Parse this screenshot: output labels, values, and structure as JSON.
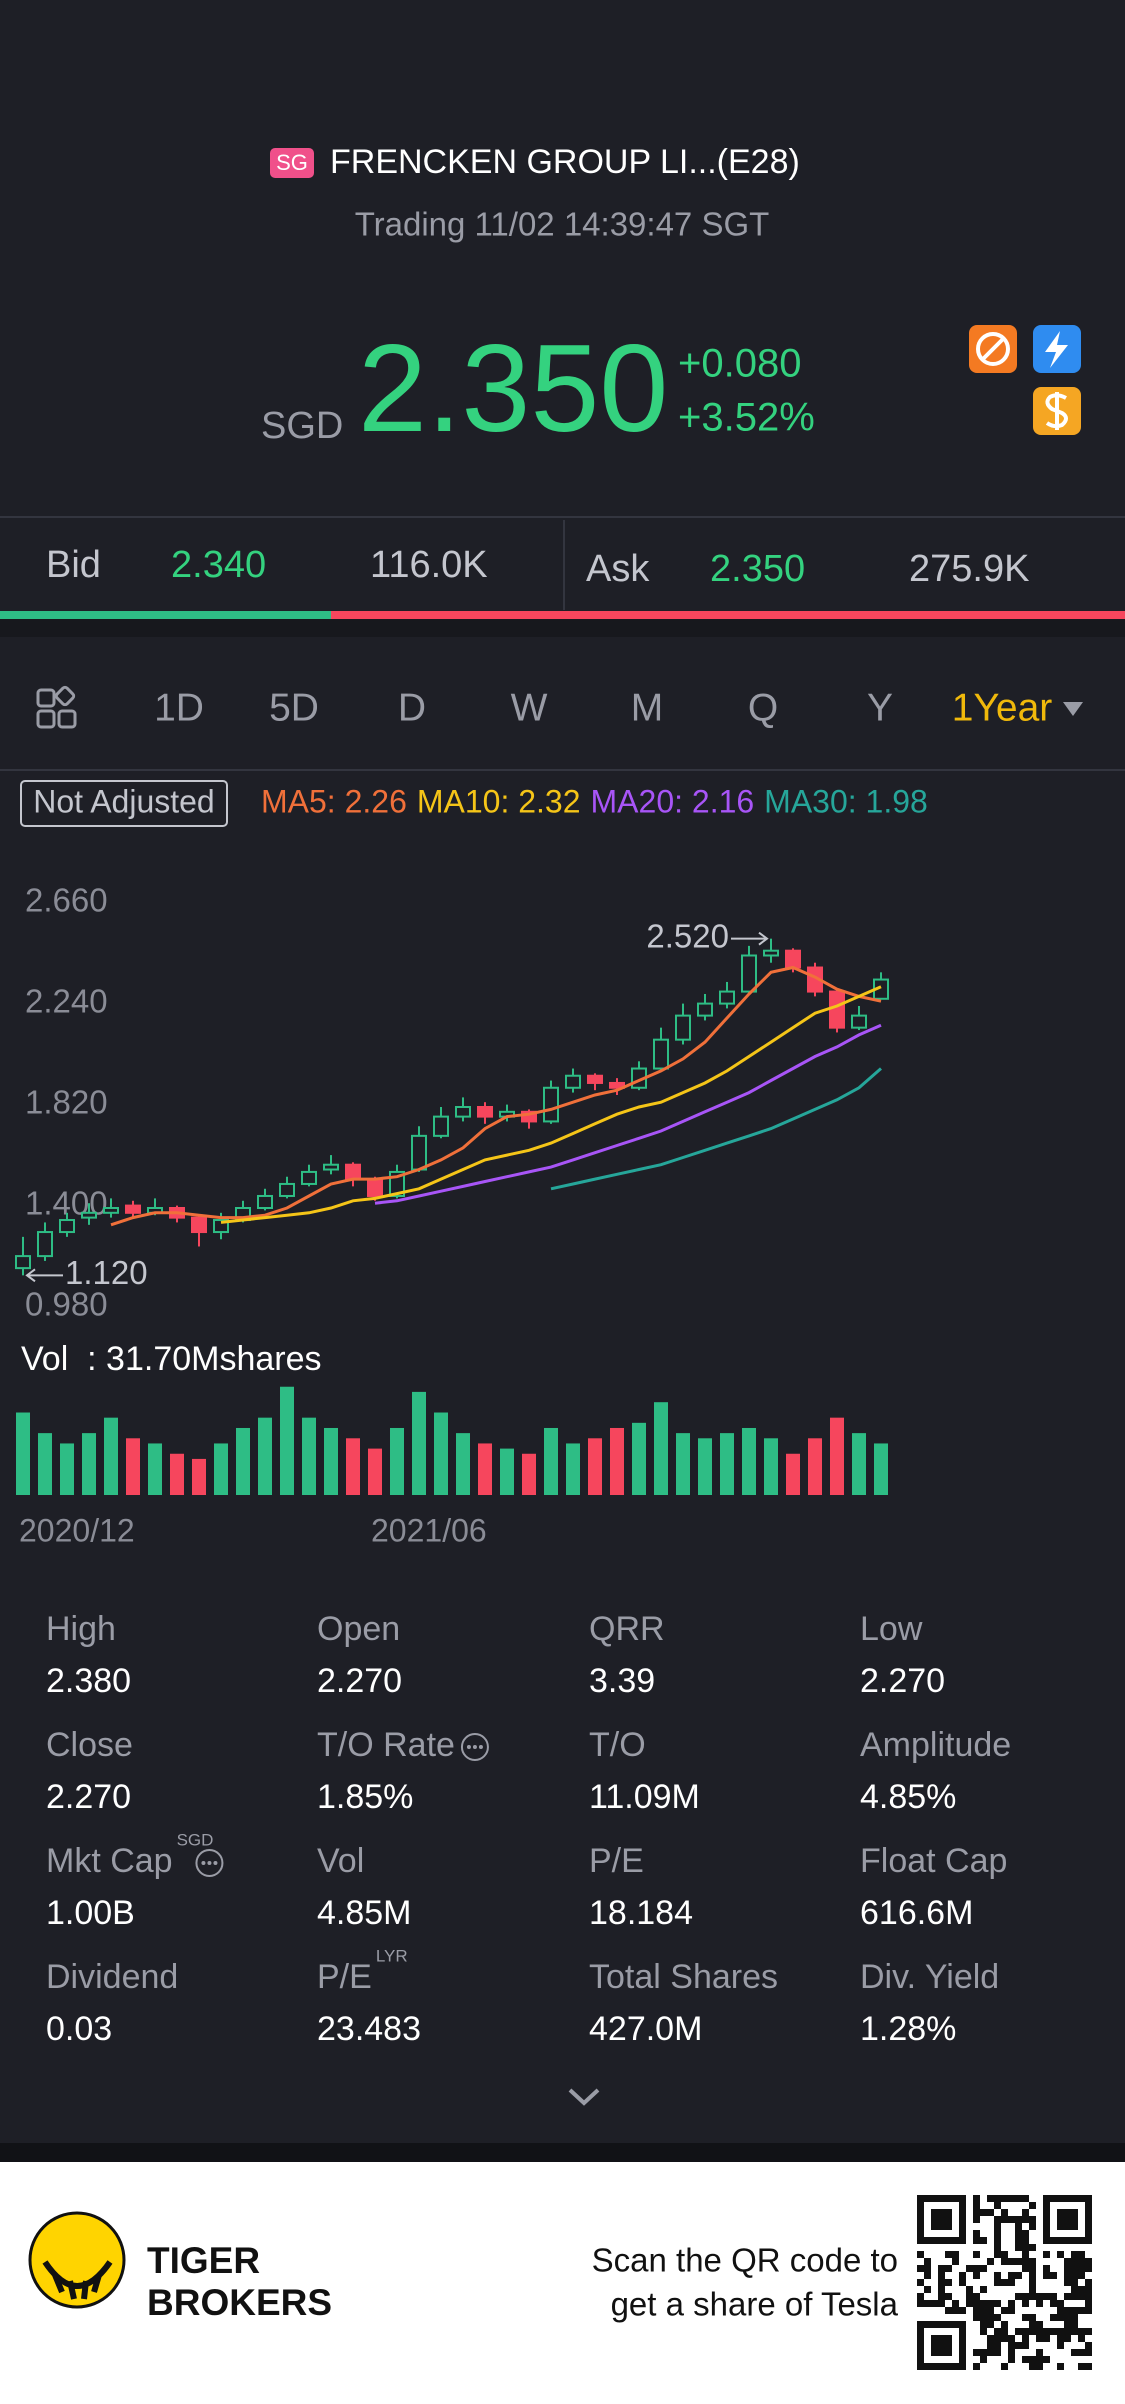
{
  "header": {
    "badge": "SG",
    "title": "FRENCKEN GROUP LI...(E28)",
    "status": "Trading 11/02 14:39:47 SGT"
  },
  "quote": {
    "currency": "SGD",
    "price": "2.350",
    "change": "+0.080",
    "change_pct": "+3.52%"
  },
  "bid_ask": {
    "bid_label": "Bid",
    "bid_price": "2.340",
    "bid_size": "116.0K",
    "ask_label": "Ask",
    "ask_price": "2.350",
    "ask_size": "275.9K"
  },
  "tabs": [
    "1D",
    "5D",
    "D",
    "W",
    "M",
    "Q",
    "Y",
    "1Year"
  ],
  "chart": {
    "type": "candlestick",
    "adjust": "Not Adjusted",
    "ylim": [
      0.98,
      2.66
    ],
    "yticks": [
      {
        "value": 2.66,
        "label": "2.660"
      },
      {
        "value": 2.24,
        "label": "2.240"
      },
      {
        "value": 1.82,
        "label": "1.820"
      },
      {
        "value": 1.4,
        "label": "1.400"
      },
      {
        "value": 0.98,
        "label": "0.980"
      }
    ],
    "high_mark": {
      "value": 2.52,
      "label": "2.520"
    },
    "low_mark": {
      "value": 1.12,
      "label": "1.120"
    },
    "up_color": "#2ebd85",
    "down_color": "#f6465d",
    "ohlc": [
      [
        1.15,
        1.28,
        1.12,
        1.2
      ],
      [
        1.2,
        1.34,
        1.18,
        1.3
      ],
      [
        1.3,
        1.38,
        1.28,
        1.35
      ],
      [
        1.36,
        1.42,
        1.33,
        1.38
      ],
      [
        1.38,
        1.44,
        1.36,
        1.4
      ],
      [
        1.41,
        1.43,
        1.36,
        1.38
      ],
      [
        1.38,
        1.44,
        1.37,
        1.4
      ],
      [
        1.4,
        1.41,
        1.34,
        1.36
      ],
      [
        1.36,
        1.37,
        1.24,
        1.3
      ],
      [
        1.3,
        1.38,
        1.27,
        1.35
      ],
      [
        1.35,
        1.43,
        1.34,
        1.4
      ],
      [
        1.4,
        1.48,
        1.39,
        1.45
      ],
      [
        1.45,
        1.53,
        1.44,
        1.5
      ],
      [
        1.5,
        1.58,
        1.49,
        1.55
      ],
      [
        1.56,
        1.62,
        1.54,
        1.58
      ],
      [
        1.58,
        1.59,
        1.49,
        1.52
      ],
      [
        1.52,
        1.53,
        1.43,
        1.45
      ],
      [
        1.45,
        1.58,
        1.44,
        1.55
      ],
      [
        1.56,
        1.74,
        1.55,
        1.7
      ],
      [
        1.7,
        1.82,
        1.69,
        1.78
      ],
      [
        1.78,
        1.86,
        1.76,
        1.82
      ],
      [
        1.82,
        1.84,
        1.75,
        1.78
      ],
      [
        1.78,
        1.83,
        1.76,
        1.8
      ],
      [
        1.8,
        1.81,
        1.73,
        1.76
      ],
      [
        1.76,
        1.93,
        1.75,
        1.9
      ],
      [
        1.9,
        1.98,
        1.88,
        1.95
      ],
      [
        1.95,
        1.96,
        1.89,
        1.92
      ],
      [
        1.92,
        1.94,
        1.87,
        1.9
      ],
      [
        1.9,
        2.01,
        1.89,
        1.98
      ],
      [
        1.98,
        2.15,
        1.97,
        2.1
      ],
      [
        2.1,
        2.25,
        2.08,
        2.2
      ],
      [
        2.2,
        2.29,
        2.18,
        2.25
      ],
      [
        2.25,
        2.34,
        2.23,
        2.3
      ],
      [
        2.3,
        2.49,
        2.29,
        2.45
      ],
      [
        2.45,
        2.52,
        2.42,
        2.47
      ],
      [
        2.47,
        2.48,
        2.38,
        2.4
      ],
      [
        2.4,
        2.42,
        2.28,
        2.3
      ],
      [
        2.3,
        2.31,
        2.13,
        2.15
      ],
      [
        2.15,
        2.24,
        2.14,
        2.2
      ],
      [
        2.27,
        2.38,
        2.27,
        2.35
      ]
    ],
    "ma": [
      {
        "label": "MA5: 2.26",
        "color": "#f0703a",
        "values": [
          null,
          null,
          null,
          null,
          1.33,
          1.36,
          1.38,
          1.38,
          1.37,
          1.36,
          1.36,
          1.37,
          1.4,
          1.45,
          1.5,
          1.52,
          1.52,
          1.53,
          1.56,
          1.6,
          1.65,
          1.73,
          1.78,
          1.79,
          1.81,
          1.84,
          1.87,
          1.89,
          1.93,
          1.97,
          2.02,
          2.09,
          2.19,
          2.29,
          2.38,
          2.4,
          2.36,
          2.31,
          2.28,
          2.26
        ]
      },
      {
        "label": "MA10: 2.32",
        "color": "#f5c518",
        "values": [
          null,
          null,
          null,
          null,
          null,
          null,
          null,
          null,
          null,
          1.34,
          1.35,
          1.36,
          1.37,
          1.38,
          1.4,
          1.43,
          1.44,
          1.46,
          1.48,
          1.52,
          1.56,
          1.6,
          1.62,
          1.64,
          1.67,
          1.71,
          1.75,
          1.79,
          1.82,
          1.84,
          1.88,
          1.92,
          1.97,
          2.03,
          2.09,
          2.15,
          2.21,
          2.24,
          2.28,
          2.32
        ]
      },
      {
        "label": "MA20: 2.16",
        "color": "#a855f7",
        "values": [
          null,
          null,
          null,
          null,
          null,
          null,
          null,
          null,
          null,
          null,
          null,
          null,
          null,
          null,
          null,
          null,
          1.42,
          1.43,
          1.45,
          1.47,
          1.49,
          1.51,
          1.53,
          1.55,
          1.57,
          1.6,
          1.63,
          1.66,
          1.69,
          1.72,
          1.76,
          1.8,
          1.84,
          1.88,
          1.93,
          1.98,
          2.03,
          2.07,
          2.12,
          2.16
        ]
      },
      {
        "label": "MA30: 1.98",
        "color": "#26a69a",
        "values": [
          null,
          null,
          null,
          null,
          null,
          null,
          null,
          null,
          null,
          null,
          null,
          null,
          null,
          null,
          null,
          null,
          null,
          null,
          null,
          null,
          null,
          null,
          null,
          null,
          1.48,
          1.5,
          1.52,
          1.54,
          1.56,
          1.58,
          1.61,
          1.64,
          1.67,
          1.7,
          1.73,
          1.77,
          1.81,
          1.85,
          1.9,
          1.98
        ]
      }
    ],
    "vol_label": "Vol  : 31.70Mshares",
    "vol_ylim": [
      0,
      4.5
    ],
    "volumes": [
      3.2,
      2.4,
      2.0,
      2.4,
      3.0,
      2.2,
      2.0,
      1.6,
      1.4,
      2.0,
      2.6,
      3.0,
      4.2,
      3.0,
      2.6,
      2.2,
      1.8,
      2.6,
      4.0,
      3.2,
      2.4,
      2.0,
      1.8,
      1.6,
      2.6,
      2.0,
      2.2,
      2.6,
      2.8,
      3.6,
      2.4,
      2.2,
      2.4,
      2.6,
      2.2,
      1.6,
      2.2,
      3.0,
      2.4,
      2.0
    ],
    "categories": [
      "2020/12",
      null,
      null,
      null,
      null,
      null,
      null,
      null,
      null,
      null,
      null,
      null,
      null,
      null,
      null,
      null,
      "2021/06",
      null,
      null,
      null,
      null,
      null,
      null,
      null,
      null,
      null,
      null,
      null,
      null,
      null,
      null,
      null,
      null,
      null,
      null,
      null,
      null,
      null,
      null,
      null
    ]
  },
  "stats": [
    {
      "label": "High",
      "value": "2.380"
    },
    {
      "label": "Open",
      "value": "2.270"
    },
    {
      "label": "QRR",
      "value": "3.39"
    },
    {
      "label": "Low",
      "value": "2.270"
    },
    {
      "label": "Close",
      "value": "2.270"
    },
    {
      "label": "T/O Rate",
      "value": "1.85%",
      "info": true
    },
    {
      "label": "T/O",
      "value": "11.09M"
    },
    {
      "label": "Amplitude",
      "value": "4.85%"
    },
    {
      "label": "Mkt Cap",
      "sup": "SGD",
      "value": "1.00B",
      "info": true
    },
    {
      "label": "Vol",
      "value": "4.85M"
    },
    {
      "label": "P/E",
      "value": "18.184"
    },
    {
      "label": "Float Cap",
      "value": "616.6M"
    },
    {
      "label": "Dividend",
      "value": "0.03"
    },
    {
      "label": "P/E",
      "sup": "LYR",
      "value": "23.483"
    },
    {
      "label": "Total Shares",
      "value": "427.0M"
    },
    {
      "label": "Div. Yield",
      "value": "1.28%"
    }
  ],
  "footer": {
    "brand_line1": "TIGER",
    "brand_line2": "BROKERS",
    "promo_line1": "Scan the QR code to",
    "promo_line2": "get a share of Tesla"
  }
}
